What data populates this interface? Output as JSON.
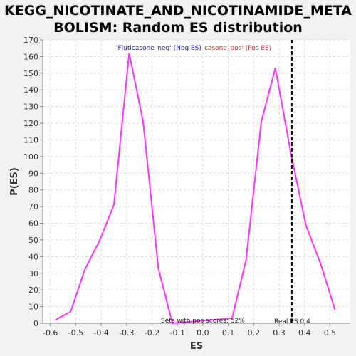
{
  "chart_data": {
    "type": "line",
    "title_line1": "KEGG_NICOTINATE_AND_NICOTINAMIDE_META",
    "title_line2": "BOLISM: Random ES distribution",
    "xlabel": "ES",
    "ylabel": "P(ES)",
    "xlim": [
      -0.63,
      0.58
    ],
    "ylim": [
      0,
      170
    ],
    "x_ticks": [
      -0.6,
      -0.5,
      -0.4,
      -0.3,
      -0.2,
      -0.1,
      0.0,
      0.1,
      0.2,
      0.3,
      0.4,
      0.5
    ],
    "x_tick_labels": [
      "-0.6",
      "-0.5",
      "-0.4",
      "-0.3",
      "-0.2",
      "-0.1",
      "0.0",
      "0.1",
      "0.2",
      "0.3",
      "0.4",
      "0.5"
    ],
    "y_ticks": [
      0,
      10,
      20,
      30,
      40,
      50,
      60,
      70,
      80,
      90,
      100,
      110,
      120,
      130,
      140,
      150,
      160,
      170
    ],
    "y_tick_labels": [
      "0",
      "10",
      "20",
      "30",
      "40",
      "50",
      "60",
      "70",
      "80",
      "90",
      "100",
      "110",
      "120",
      "130",
      "140",
      "150",
      "160",
      "170"
    ],
    "grid": true,
    "series": [
      {
        "color": "#ff33ff",
        "points": [
          [
            -0.58,
            2
          ],
          [
            -0.52,
            7
          ],
          [
            -0.465,
            32
          ],
          [
            -0.405,
            50
          ],
          [
            -0.35,
            71
          ],
          [
            -0.29,
            162
          ],
          [
            -0.235,
            121
          ],
          [
            -0.175,
            33
          ],
          [
            -0.12,
            0
          ],
          [
            0.115,
            3
          ],
          [
            0.17,
            38
          ],
          [
            0.23,
            121
          ],
          [
            0.285,
            153
          ],
          [
            0.345,
            103
          ],
          [
            0.405,
            59
          ],
          [
            0.465,
            35
          ],
          [
            0.52,
            8
          ]
        ]
      }
    ],
    "real_es": {
      "value": 0.35,
      "label": "Real ES 0.4",
      "color": "#000000"
    },
    "legend_neg": {
      "text": "'Fluticasone_neg' (Neg ES)",
      "color": "#2222cc"
    },
    "legend_pos": {
      "text": "casone_pos' (Pos ES)",
      "color": "#dd2222"
    },
    "pos_scores_text": "Sets with pos scores: 52%"
  }
}
